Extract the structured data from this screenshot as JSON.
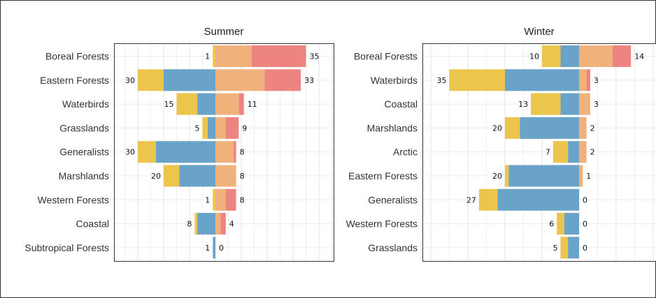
{
  "chart_data": [
    {
      "type": "bar",
      "orientation": "horizontal",
      "stacked": "diverging",
      "title": "Summer",
      "grid": true,
      "categories": [
        "Boreal Forests",
        "Eastern Forests",
        "Waterbirds",
        "Grasslands",
        "Generalists",
        "Marshlands",
        "Western Forests",
        "Coastal",
        "Subtropical Forests"
      ],
      "left_labels": [
        1,
        30,
        15,
        5,
        30,
        20,
        1,
        8,
        1
      ],
      "right_labels": [
        35,
        33,
        11,
        9,
        8,
        8,
        8,
        4,
        0
      ],
      "series": [
        {
          "name": "",
          "side": "left",
          "color": "#6aa3c9",
          "values": [
            0,
            20,
            7,
            3,
            23,
            14,
            0,
            7,
            1
          ]
        },
        {
          "name": "",
          "side": "left",
          "color": "#ebc54c",
          "values": [
            1,
            10,
            8,
            2,
            7,
            6,
            1,
            1,
            0
          ]
        },
        {
          "name": "",
          "side": "right",
          "color": "#f0b27a",
          "values": [
            14,
            19,
            9,
            4,
            7,
            8,
            4,
            2,
            0
          ]
        },
        {
          "name": "",
          "side": "right",
          "color": "#ee8480",
          "values": [
            21,
            14,
            2,
            5,
            1,
            0,
            4,
            2,
            0
          ]
        }
      ]
    },
    {
      "type": "bar",
      "orientation": "horizontal",
      "stacked": "diverging",
      "title": "Winter",
      "grid": true,
      "categories": [
        "Boreal Forests",
        "Waterbirds",
        "Coastal",
        "Marshlands",
        "Arctic",
        "Eastern Forests",
        "Generalists",
        "Western Forests",
        "Grasslands"
      ],
      "left_labels": [
        10,
        35,
        13,
        20,
        7,
        20,
        27,
        6,
        5
      ],
      "right_labels": [
        14,
        3,
        3,
        2,
        2,
        1,
        0,
        0,
        0
      ],
      "series": [
        {
          "name": "",
          "side": "left",
          "color": "#6aa3c9",
          "values": [
            5,
            20,
            5,
            16,
            3,
            19,
            22,
            4,
            3
          ]
        },
        {
          "name": "",
          "side": "left",
          "color": "#ebc54c",
          "values": [
            5,
            15,
            8,
            4,
            4,
            1,
            5,
            2,
            2
          ]
        },
        {
          "name": "",
          "side": "right",
          "color": "#f0b27a",
          "values": [
            9,
            2,
            3,
            2,
            2,
            1,
            0,
            0,
            0
          ]
        },
        {
          "name": "",
          "side": "right",
          "color": "#ee8480",
          "values": [
            5,
            1,
            0,
            0,
            0,
            0,
            0,
            0,
            0
          ]
        }
      ]
    }
  ]
}
